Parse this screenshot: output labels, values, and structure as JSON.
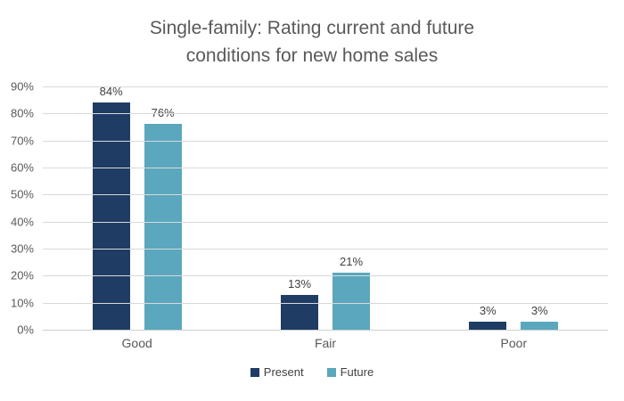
{
  "chart_data": {
    "type": "bar",
    "title": "Single-family: Rating current and future conditions for new home sales",
    "categories": [
      "Good",
      "Fair",
      "Poor"
    ],
    "series": [
      {
        "name": "Present",
        "color": "#1E3C64",
        "values": [
          84,
          13,
          3
        ],
        "labels": [
          "84%",
          "13%",
          "3%"
        ]
      },
      {
        "name": "Future",
        "color": "#5AA7BE",
        "values": [
          76,
          21,
          3
        ],
        "labels": [
          "76%",
          "21%",
          "3%"
        ]
      }
    ],
    "y_axis": {
      "min": 0,
      "max": 90,
      "tick_step": 10,
      "tick_labels": [
        "0%",
        "10%",
        "20%",
        "30%",
        "40%",
        "50%",
        "60%",
        "70%",
        "80%",
        "90%"
      ]
    },
    "ylim": [
      0,
      90
    ],
    "grid": true,
    "legend_position": "bottom"
  },
  "colors": {
    "background": "#FFFFFF",
    "title_text": "#595959",
    "axis_text": "#595959",
    "data_label_text": "#404040",
    "gridline": "#D9D9D9",
    "axis_line": "#CFCFCF"
  }
}
